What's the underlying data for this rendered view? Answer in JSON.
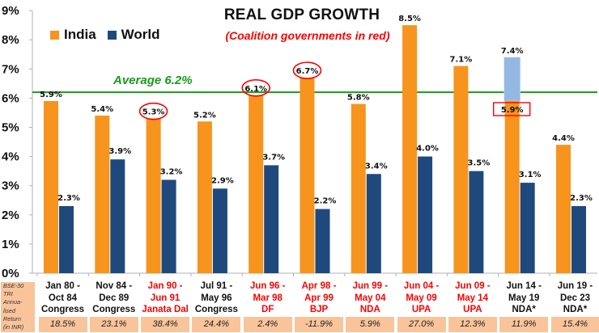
{
  "chart_data": {
    "type": "bar",
    "title": "REAL GDP GROWTH",
    "subtitle": "(Coalition governments in red)",
    "xlabel": "",
    "ylabel": "",
    "ylim": [
      0,
      9
    ],
    "y_ticks": [
      "0%",
      "1%",
      "2%",
      "3%",
      "4%",
      "5%",
      "6%",
      "7%",
      "8%",
      "9%"
    ],
    "legend": {
      "placement": "top-left",
      "entries": [
        "India",
        "World"
      ]
    },
    "colors": {
      "India": "#f7941d",
      "World": "#1f497d",
      "adjusted": "#95b8e3",
      "average": "#1a9a1a",
      "highlight": "#ff0000",
      "returns_bg": "#f9c49a"
    },
    "average": {
      "value": 6.2,
      "label": "Average 6.2%"
    },
    "categories": [
      {
        "line1": "Jan 80 -",
        "line2": "Oct 84",
        "line3": "Congress",
        "coalition": false
      },
      {
        "line1": "Nov 84 -",
        "line2": "Dec 89",
        "line3": "Congress",
        "coalition": false
      },
      {
        "line1": "Jan 90 -",
        "line2": "Jun 91",
        "line3": "Janata Dal",
        "coalition": true
      },
      {
        "line1": "Jul 91 -",
        "line2": "May 96",
        "line3": "Congress",
        "coalition": false
      },
      {
        "line1": "Jun 96 -",
        "line2": "Mar 98",
        "line3": "DF",
        "coalition": true
      },
      {
        "line1": "Apr 98 -",
        "line2": "Apr 99",
        "line3": "BJP",
        "coalition": true
      },
      {
        "line1": "Jun 99 -",
        "line2": "May 04",
        "line3": "NDA",
        "coalition": true
      },
      {
        "line1": "Jun 04 -",
        "line2": "May 09",
        "line3": "UPA",
        "coalition": true
      },
      {
        "line1": "Jun 09 -",
        "line2": "May 14",
        "line3": "UPA",
        "coalition": true
      },
      {
        "line1": "Jun 14 -",
        "line2": "May 19",
        "line3": "NDA*",
        "coalition": false
      },
      {
        "line1": "Jun 19 -",
        "line2": "Dec 23",
        "line3": "NDA*",
        "coalition": false
      }
    ],
    "series": [
      {
        "name": "India",
        "values": [
          5.9,
          5.4,
          5.3,
          5.2,
          6.1,
          6.7,
          5.8,
          8.5,
          7.1,
          5.9,
          4.4
        ],
        "labels": [
          "5.9%",
          "5.4%",
          "5.3%",
          "5.2%",
          "6.1%",
          "6.7%",
          "5.8%",
          "8.5%",
          "7.1%",
          "5.9%",
          "4.4%"
        ],
        "circled": [
          false,
          false,
          true,
          false,
          true,
          true,
          false,
          false,
          false,
          false,
          false
        ]
      },
      {
        "name": "World",
        "values": [
          2.3,
          3.9,
          3.2,
          2.9,
          3.7,
          2.2,
          3.4,
          4.0,
          3.5,
          3.1,
          2.3
        ],
        "labels": [
          "2.3%",
          "3.9%",
          "3.2%",
          "2.9%",
          "3.7%",
          "2.2%",
          "3.4%",
          "4.0%",
          "3.5%",
          "3.1%",
          "2.3%"
        ]
      }
    ],
    "adjusted_india": {
      "category_index": 9,
      "value": 7.4,
      "label": "7.4%",
      "boxed_label": "5.9%"
    },
    "returns": {
      "label": "BSE-30\nTRI\nAnnua-\nlised\nReturn\n(in INR)",
      "values": [
        "18.5%",
        "23.1%",
        "38.4%",
        "24.4%",
        "2.4%",
        "-11.9%",
        "5.9%",
        "27.0%",
        "12.3%",
        "11.9%",
        "15.4%"
      ]
    }
  }
}
